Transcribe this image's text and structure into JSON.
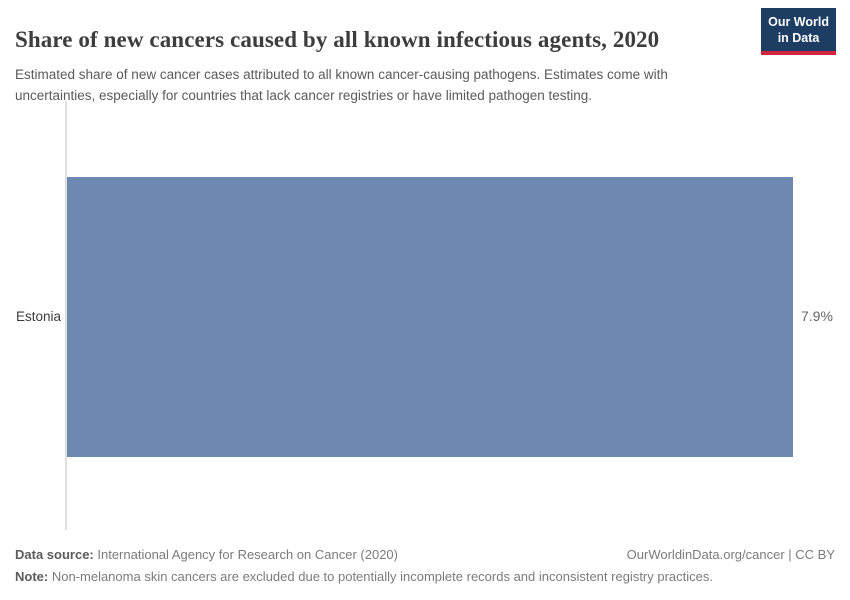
{
  "header": {
    "title": "Share of new cancers caused by all known infectious agents, 2020",
    "subtitle": "Estimated share of new cancer cases attributed to all known cancer-causing pathogens. Estimates come with uncertainties, especially for countries that lack cancer registries or have limited pathogen testing.",
    "logo": {
      "line1": "Our World",
      "line2": "in Data"
    }
  },
  "chart_data": {
    "type": "bar",
    "orientation": "horizontal",
    "title": "Share of new cancers caused by all known infectious agents, 2020",
    "categories": [
      "Estonia"
    ],
    "values": [
      7.9
    ],
    "unit": "%",
    "value_labels": [
      "7.9%"
    ],
    "xlim": [
      0,
      7.9
    ],
    "grid": false,
    "legend": "none",
    "xlabel": "",
    "ylabel": ""
  },
  "chart": {
    "entity_label": "Estonia",
    "value_label": "7.9%"
  },
  "footer": {
    "data_source_label": "Data source:",
    "data_source_text": " International Agency for Research on Cancer (2020)",
    "attribution": "OurWorldinData.org/cancer | CC BY",
    "note_label": "Note:",
    "note_text": " Non-melanoma skin cancers are excluded due to potentially incomplete records and inconsistent registry practices."
  },
  "colors": {
    "bar": "#6d89b1",
    "logo_background": "#1d3d63",
    "logo_underline": "#d1273e",
    "title_text": "#3d3d3d",
    "subtitle_text": "#5a5a5a",
    "axis_line": "#dedede",
    "footer_text": "#7b7b7b"
  }
}
